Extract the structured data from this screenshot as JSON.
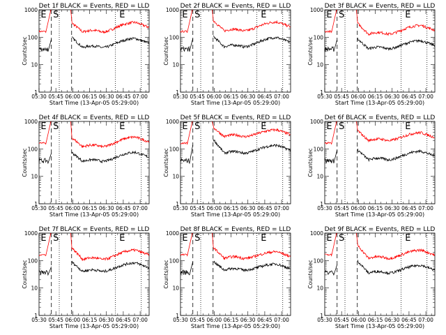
{
  "chart_data": [
    {
      "type": "line",
      "title": "Det 1f BLACK = Events, RED = LLD",
      "xlabel": "Start Time (13-Apr-05 05:29:00)",
      "ylabel": "Counts/sec",
      "yscale": "log",
      "ylim": [
        1,
        1000
      ],
      "x_ticks": [
        "05:30",
        "05:45",
        "06:00",
        "06:15",
        "06:30",
        "06:45",
        "07:00"
      ],
      "y_ticks": [
        "1",
        "10",
        "100",
        "1000"
      ],
      "markers": [
        "E",
        "S",
        "E"
      ],
      "lld_peak": 1000,
      "lld_after": 340,
      "lld_min": 155,
      "lld_end": 230,
      "ev_before": 85,
      "ev_after": 100,
      "ev_min": 42,
      "ev_end": 60
    },
    {
      "type": "line",
      "title": "Det 2f BLACK = Events, RED = LLD",
      "xlabel": "Start Time (13-Apr-05 05:29:00)",
      "ylabel": "Counts/sec",
      "yscale": "log",
      "ylim": [
        1,
        1000
      ],
      "x_ticks": [
        "05:30",
        "05:45",
        "06:00",
        "06:15",
        "06:30",
        "06:45",
        "07:00"
      ],
      "y_ticks": [
        "1",
        "10",
        "100",
        "1000"
      ],
      "markers": [
        "E",
        "S",
        "E"
      ],
      "lld_peak": 1000,
      "lld_after": 420,
      "lld_min": 170,
      "lld_end": 240,
      "ev_before": 90,
      "ev_after": 110,
      "ev_min": 45,
      "ev_end": 65
    },
    {
      "type": "line",
      "title": "Det 3f BLACK = Events, RED = LLD",
      "xlabel": "Start Time (13-Apr-05 05:29:00)",
      "ylabel": "Counts/sec",
      "yscale": "log",
      "ylim": [
        1,
        1000
      ],
      "x_ticks": [
        "05:30",
        "05:45",
        "06:00",
        "06:15",
        "06:30",
        "06:45",
        "07:00"
      ],
      "y_ticks": [
        "1",
        "10",
        "100",
        "1000"
      ],
      "markers": [
        "E",
        "S",
        "E"
      ],
      "lld_peak": 1000,
      "lld_after": 330,
      "lld_min": 130,
      "lld_end": 180,
      "ev_before": 80,
      "ev_after": 90,
      "ev_min": 38,
      "ev_end": 50
    },
    {
      "type": "line",
      "title": "Det 4f BLACK = Events, RED = LLD",
      "xlabel": "Start Time (13-Apr-05 05:29:00)",
      "ylabel": "Counts/sec",
      "yscale": "log",
      "ylim": [
        1,
        1000
      ],
      "x_ticks": [
        "05:30",
        "05:45",
        "06:00",
        "06:15",
        "06:30",
        "06:45",
        "07:00"
      ],
      "y_ticks": [
        "1",
        "10",
        "100",
        "1000"
      ],
      "markers": [
        "E",
        "S",
        "E"
      ],
      "lld_peak": 1000,
      "lld_after": 260,
      "lld_min": 120,
      "lld_end": 180,
      "ev_before": 70,
      "ev_after": 75,
      "ev_min": 35,
      "ev_end": 50
    },
    {
      "type": "line",
      "title": "Det 5f BLACK = Events, RED = LLD",
      "xlabel": "Start Time (13-Apr-05 05:29:00)",
      "ylabel": "Counts/sec",
      "yscale": "log",
      "ylim": [
        1,
        1000
      ],
      "x_ticks": [
        "05:30",
        "05:45",
        "06:00",
        "06:15",
        "06:30",
        "06:45",
        "07:00"
      ],
      "y_ticks": [
        "1",
        "10",
        "100",
        "1000"
      ],
      "markers": [
        "E",
        "S",
        "E"
      ],
      "lld_peak": 1000,
      "lld_after": 620,
      "lld_min": 280,
      "lld_end": 330,
      "ev_before": 140,
      "ev_after": 230,
      "ev_min": 70,
      "ev_end": 90
    },
    {
      "type": "line",
      "title": "Det 6f BLACK = Events, RED = LLD",
      "xlabel": "Start Time (13-Apr-05 05:29:00)",
      "ylabel": "Counts/sec",
      "yscale": "log",
      "ylim": [
        1,
        1000
      ],
      "x_ticks": [
        "05:30",
        "05:45",
        "06:00",
        "06:15",
        "06:30",
        "06:45",
        "07:00"
      ],
      "y_ticks": [
        "1",
        "10",
        "100",
        "1000"
      ],
      "markers": [
        "E",
        "S",
        "E"
      ],
      "lld_peak": 1000,
      "lld_after": 480,
      "lld_min": 200,
      "lld_end": 260,
      "ev_before": 90,
      "ev_after": 95,
      "ev_min": 40,
      "ev_end": 55
    },
    {
      "type": "line",
      "title": "Det 7f BLACK = Events, RED = LLD",
      "xlabel": "Start Time (13-Apr-05 05:29:00)",
      "ylabel": "Counts/sec",
      "yscale": "log",
      "ylim": [
        1,
        1000
      ],
      "x_ticks": [
        "05:30",
        "05:45",
        "06:00",
        "06:15",
        "06:30",
        "06:45",
        "07:00"
      ],
      "y_ticks": [
        "1",
        "10",
        "100",
        "1000"
      ],
      "markers": [
        "E",
        "S",
        "E"
      ],
      "lld_peak": 1000,
      "lld_after": 300,
      "lld_min": 110,
      "lld_end": 160,
      "ev_before": 60,
      "ev_after": 90,
      "ev_min": 40,
      "ev_end": 55
    },
    {
      "type": "line",
      "title": "Det 8f BLACK = Events, RED = LLD",
      "xlabel": "Start Time (13-Apr-05 05:29:00)",
      "ylabel": "Counts/sec",
      "yscale": "log",
      "ylim": [
        1,
        1000
      ],
      "x_ticks": [
        "05:30",
        "05:45",
        "06:00",
        "06:15",
        "06:30",
        "06:45",
        "07:00"
      ],
      "y_ticks": [
        "1",
        "10",
        "100",
        "1000"
      ],
      "markers": [
        "E",
        "S",
        "E"
      ],
      "lld_peak": 1000,
      "lld_after": 310,
      "lld_min": 120,
      "lld_end": 140,
      "ev_before": 90,
      "ev_after": 95,
      "ev_min": 45,
      "ev_end": 50
    },
    {
      "type": "line",
      "title": "Det 9f BLACK = Events, RED = LLD",
      "xlabel": "Start Time (13-Apr-05 05:29:00)",
      "ylabel": "Counts/sec",
      "yscale": "log",
      "ylim": [
        1,
        1000
      ],
      "x_ticks": [
        "05:30",
        "05:45",
        "06:00",
        "06:15",
        "06:30",
        "06:45",
        "07:00"
      ],
      "y_ticks": [
        "1",
        "10",
        "100",
        "1000"
      ],
      "markers": [
        "E",
        "S",
        "E"
      ],
      "lld_peak": 1000,
      "lld_after": 380,
      "lld_min": 120,
      "lld_end": 160,
      "ev_before": 70,
      "ev_after": 100,
      "ev_min": 35,
      "ev_end": 45
    }
  ],
  "colors": {
    "lld": "#ff0000",
    "events": "#000000"
  }
}
